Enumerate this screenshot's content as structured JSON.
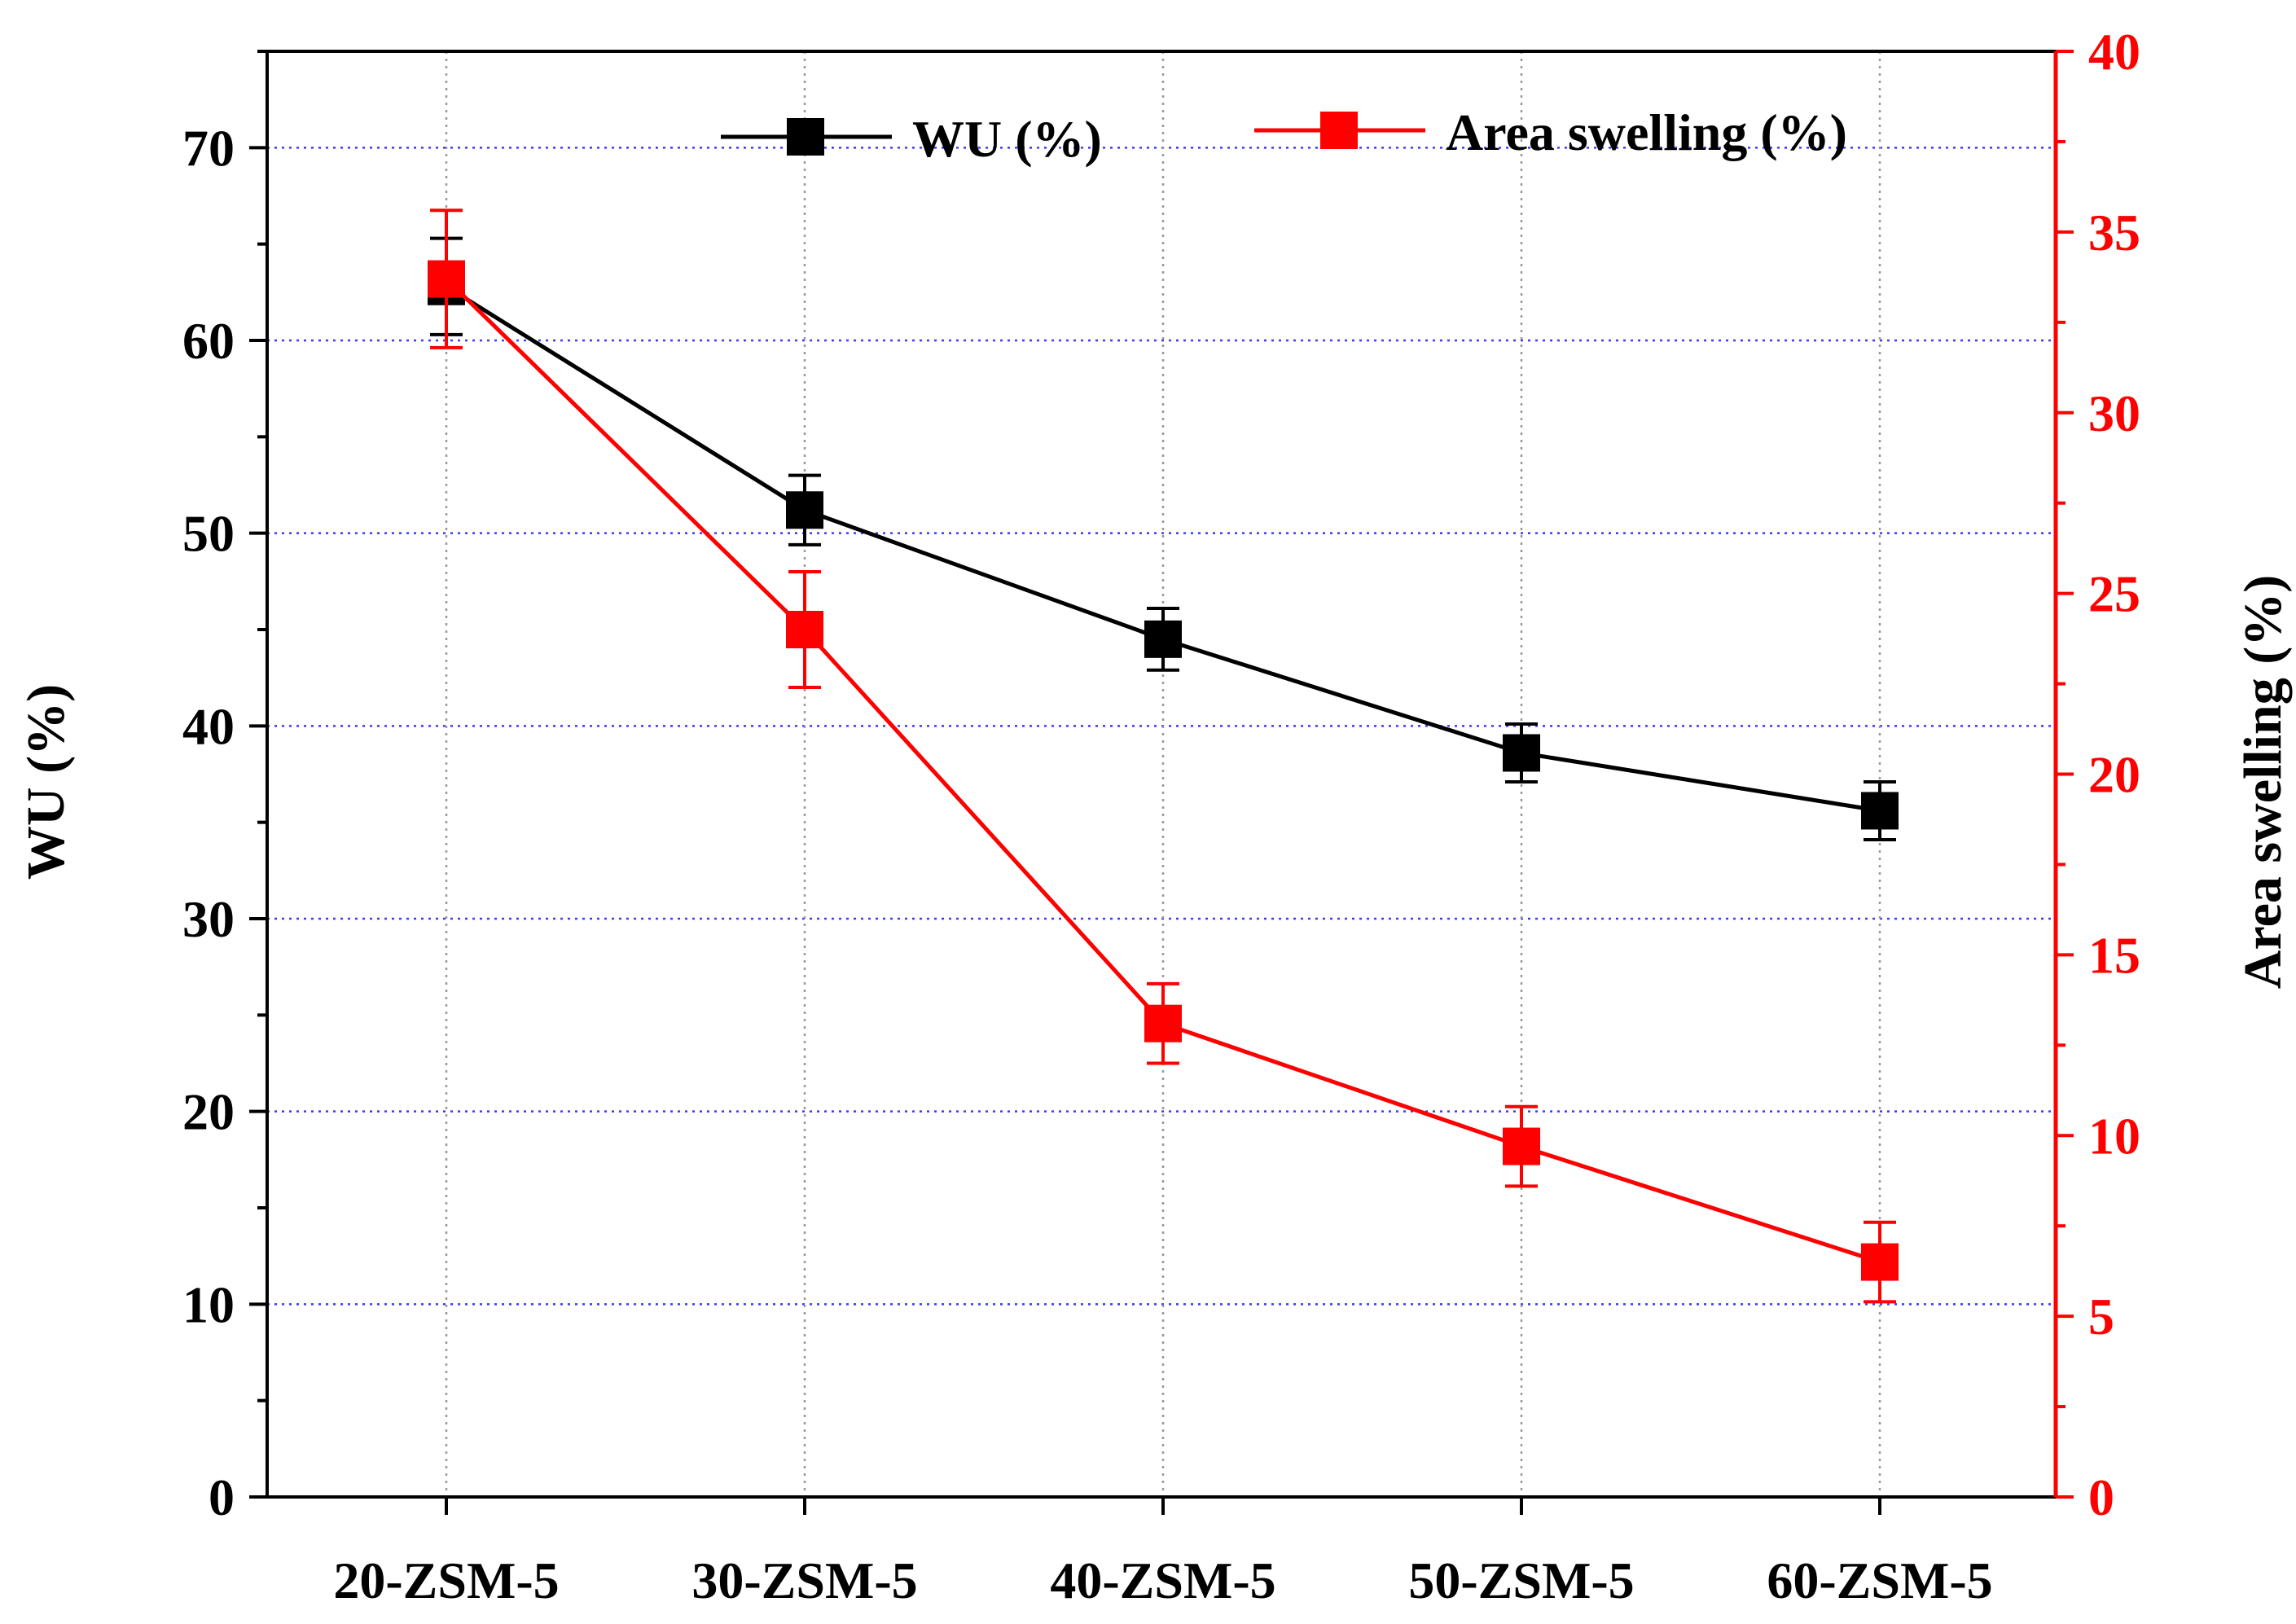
{
  "chart_data": {
    "type": "line",
    "title": "",
    "categories": [
      "20-ZSM-5",
      "30-ZSM-5",
      "40-ZSM-5",
      "50-ZSM-5",
      "60-ZSM-5"
    ],
    "xlabel": "",
    "ylabel": "WU (%)",
    "ylabel_right": "Area swelling (%)",
    "ylim": [
      0,
      75
    ],
    "ylim_right": [
      0,
      40
    ],
    "yticks": [
      "0",
      "10",
      "20",
      "30",
      "40",
      "50",
      "60",
      "70"
    ],
    "yticks_right": [
      "0",
      "5",
      "10",
      "15",
      "20",
      "25",
      "30",
      "35",
      "40"
    ],
    "grid": true,
    "legend_position": "top-center",
    "series": [
      {
        "name": "WU (%)",
        "axis": "left",
        "color": "#000000",
        "values": [
          62.8,
          51.2,
          44.5,
          38.6,
          35.6
        ],
        "errors": [
          2.5,
          1.8,
          1.6,
          1.5,
          1.5
        ]
      },
      {
        "name": "Area swelling (%)",
        "axis": "right",
        "color": "#ff0000",
        "values": [
          33.7,
          24.0,
          13.1,
          9.7,
          6.5
        ],
        "errors": [
          1.9,
          1.6,
          1.1,
          1.1,
          1.1
        ]
      }
    ]
  }
}
